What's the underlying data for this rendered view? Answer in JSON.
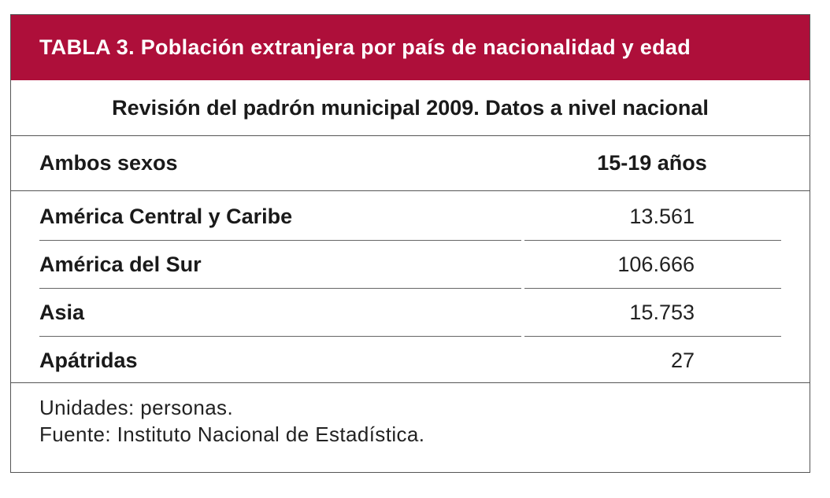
{
  "table": {
    "title": "TABLA 3. Población extranjera por país de nacionalidad y edad",
    "subtitle": "Revisión del padrón municipal 2009. Datos a nivel nacional",
    "header": {
      "row_label": "Ambos sexos",
      "column_label": "15-19 años"
    },
    "rows": [
      {
        "label": "América Central y Caribe",
        "value": "13.561"
      },
      {
        "label": "América del Sur",
        "value": "106.666"
      },
      {
        "label": "Asia",
        "value": "15.753"
      },
      {
        "label": "Apátridas",
        "value": "27"
      }
    ],
    "notes": {
      "units": "Unidades: personas.",
      "source": "Fuente: Instituto Nacional de Estadística."
    },
    "colors": {
      "title_background": "#ae0f3a",
      "title_text": "#ffffff",
      "border": "#555555"
    }
  }
}
